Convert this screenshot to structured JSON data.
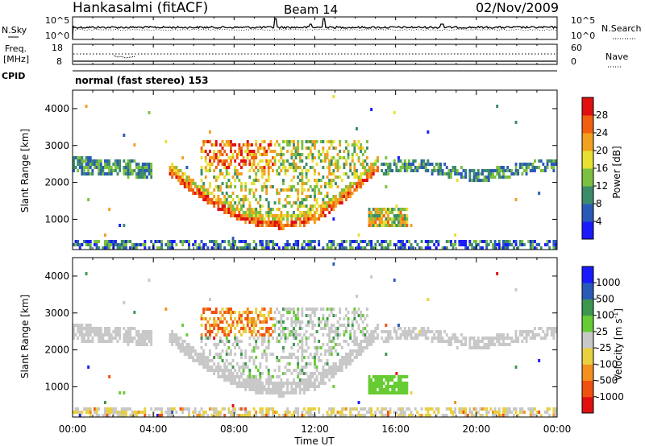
{
  "header": {
    "station": "Hankasalmi (fitACF)",
    "beam": "Beam 14",
    "date": "02/Nov/2009"
  },
  "status_panels": {
    "nsky_label": "N.Sky",
    "nsearch_label": "N.Search",
    "noise_ticks": [
      "10^5",
      "10^0"
    ],
    "freq_label_top": "Freq.",
    "freq_label_unit": "[MHz]",
    "freq_ticks": [
      "18",
      "8"
    ],
    "nave_label": "Nave",
    "nave_ticks": [
      "60",
      "0"
    ],
    "cpid_label": "CPID",
    "cpid_text": "normal (fast stereo) 153"
  },
  "chart_data": [
    {
      "type": "heatmap",
      "title": "",
      "ylabel": "Slant Range [km]",
      "xlabel": "",
      "xlim": [
        "00:00",
        "24:00"
      ],
      "ylim": [
        180,
        4500
      ],
      "y_ticks": [
        1000,
        2000,
        3000,
        4000
      ],
      "colorbar": {
        "label": "Power [dB]",
        "ticks": [
          "4",
          "8",
          "12",
          "16",
          "20",
          "24",
          "28"
        ],
        "colors": [
          "#1a1aff",
          "#2a5ab8",
          "#3c8c6a",
          "#7cc040",
          "#e8e030",
          "#f2a020",
          "#f06010",
          "#e01010"
        ]
      }
    },
    {
      "type": "heatmap",
      "title": "",
      "ylabel": "Slant Range [km]",
      "xlabel": "Time UT",
      "xlim": [
        "00:00",
        "24:00"
      ],
      "ylim": [
        180,
        4500
      ],
      "x_ticks": [
        "00:00",
        "04:00",
        "08:00",
        "12:00",
        "16:00",
        "20:00",
        "00:00"
      ],
      "y_ticks": [
        1000,
        2000,
        3000,
        4000
      ],
      "colorbar": {
        "label": "Velocity [m s",
        "label_exp": "-1",
        "label_close": "]",
        "ticks": [
          "1000",
          "500",
          "100",
          "25",
          "-25",
          "-100",
          "-500",
          "-1000"
        ],
        "colors": [
          "#1a1aff",
          "#2a5ab8",
          "#3c9650",
          "#66cc33",
          "#c8c8c8",
          "#e8d040",
          "#f29020",
          "#f05010",
          "#e01010"
        ]
      }
    }
  ]
}
